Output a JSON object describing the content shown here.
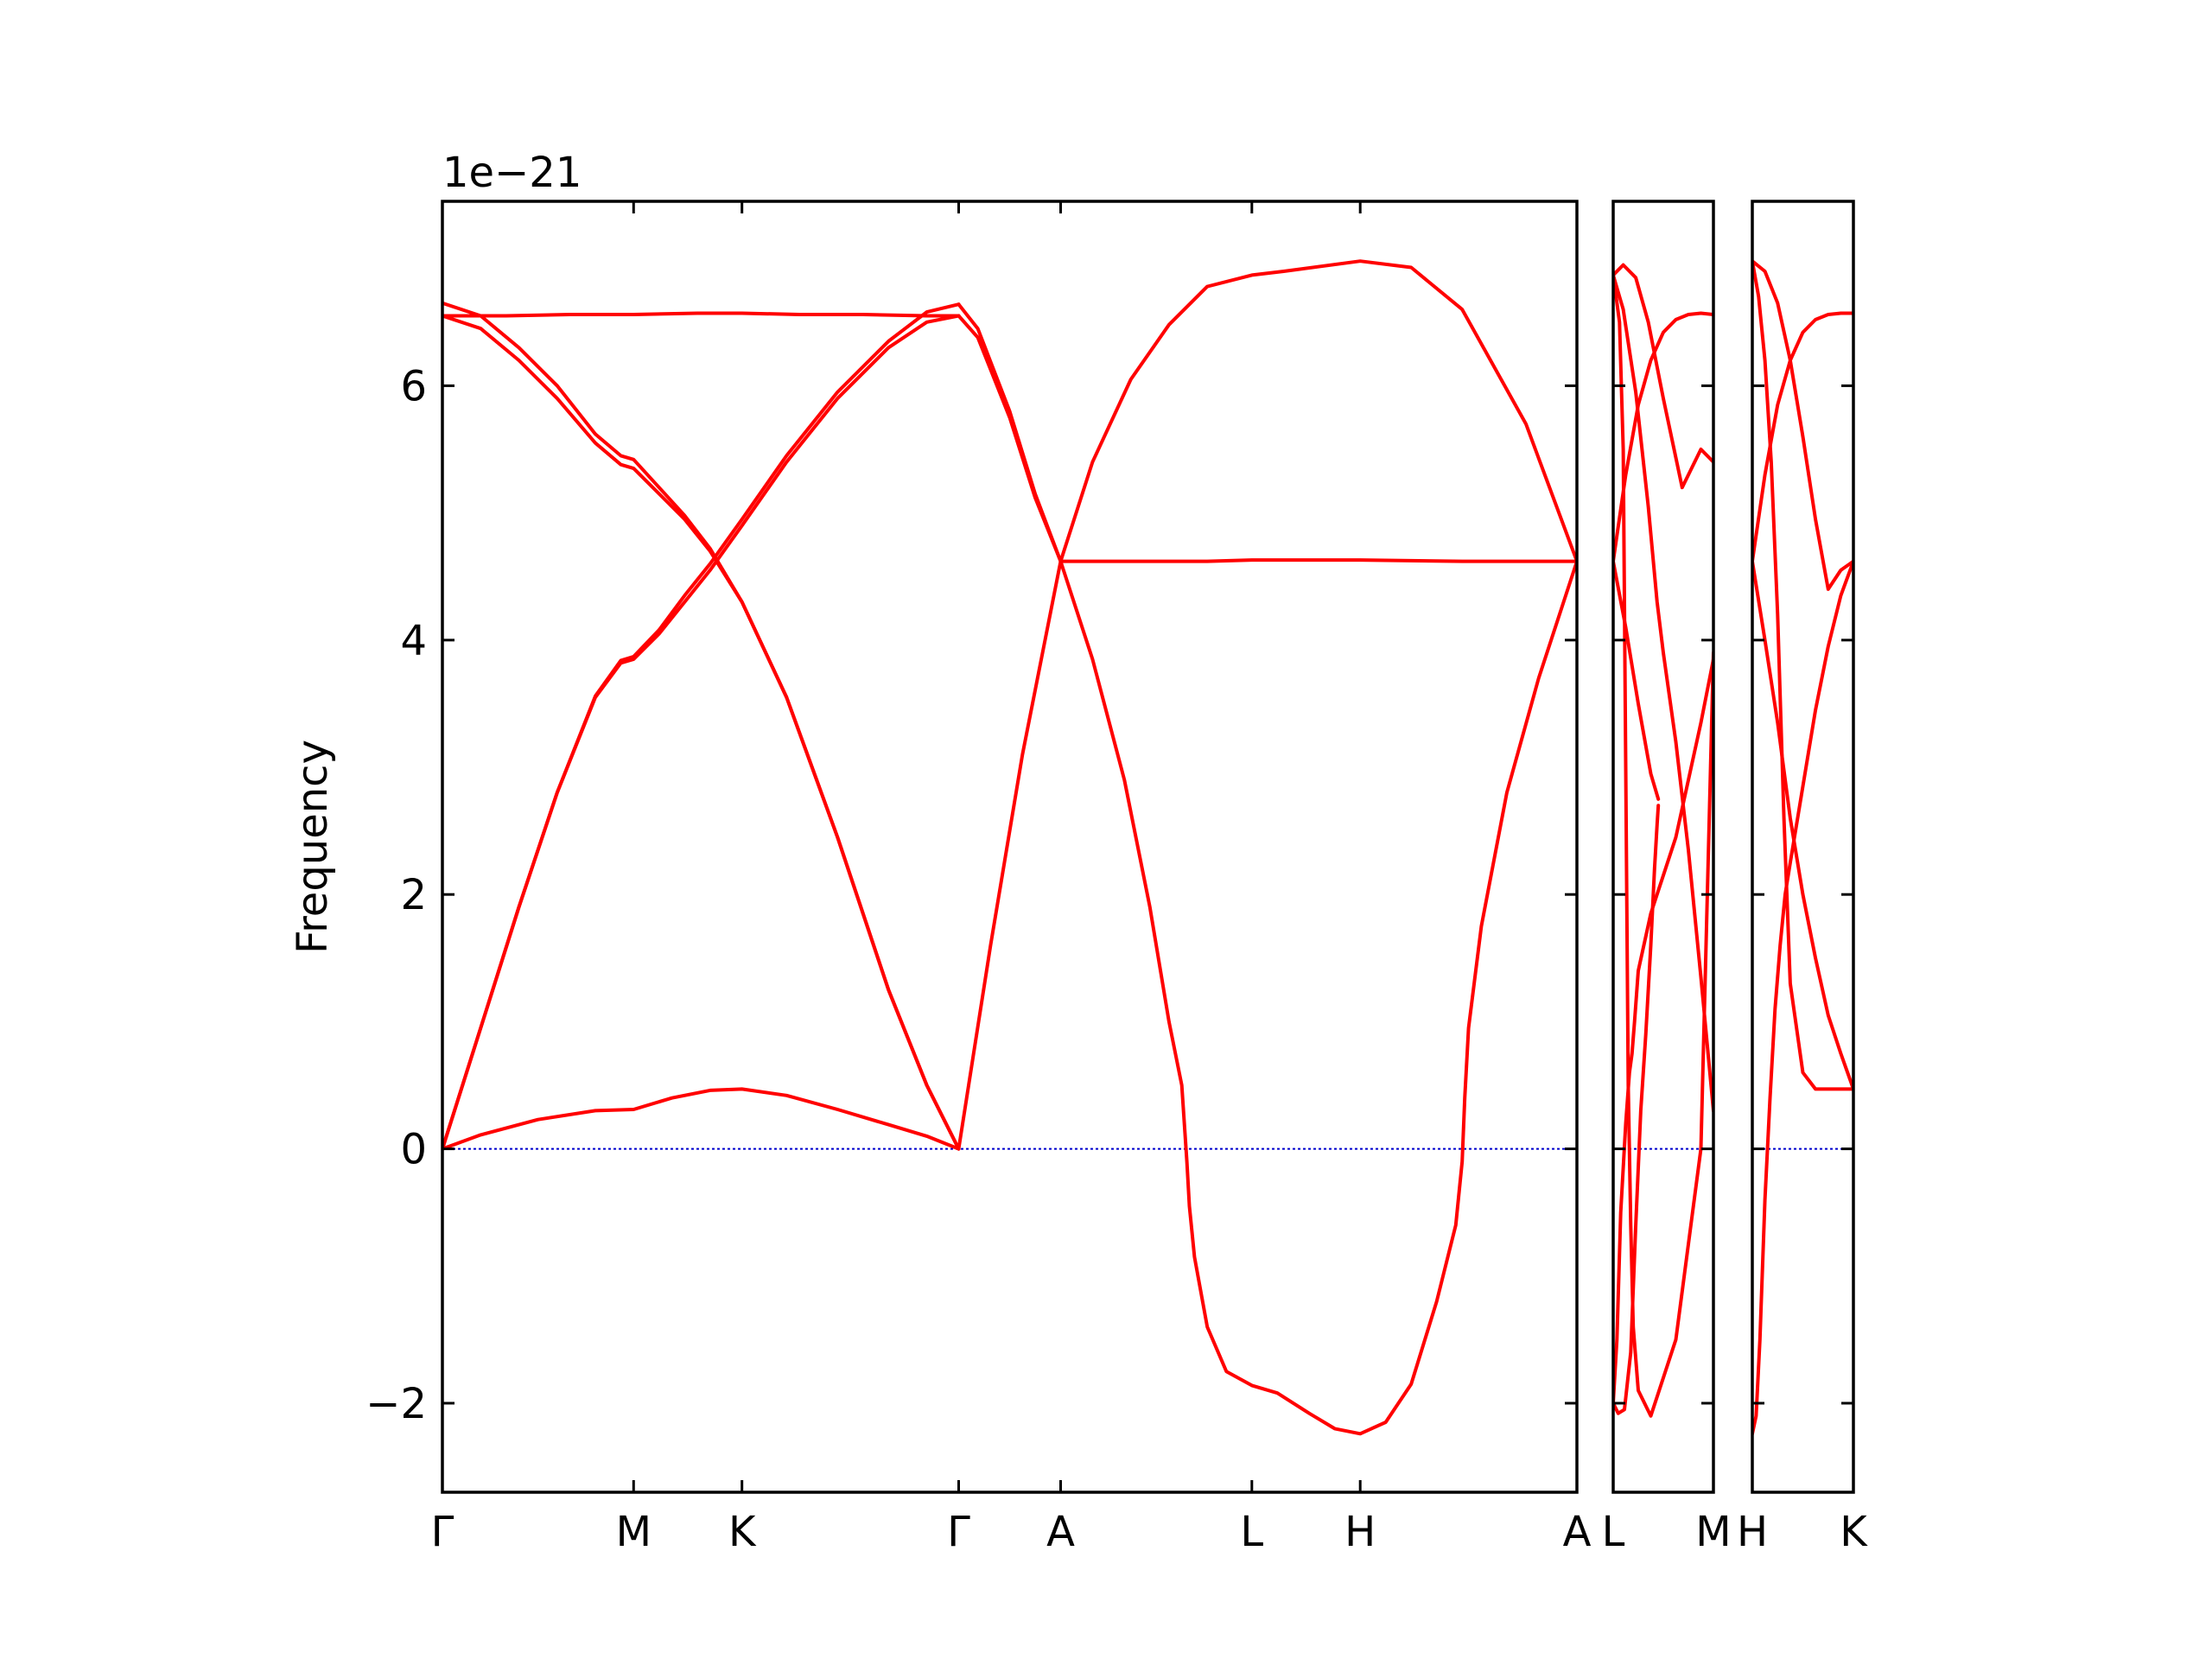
{
  "chart_data": {
    "type": "line",
    "title": "",
    "xlabel": "",
    "ylabel": "Frequency",
    "offset_text": "1e−21",
    "ylim": [
      -2.7,
      7.45
    ],
    "yticks": [
      -2,
      0,
      2,
      4,
      6
    ],
    "ytick_labels": [
      "−2",
      "0",
      "2",
      "4",
      "6"
    ],
    "line_color": "#ff0000",
    "zero_line_color": "#0000cc",
    "grid": false,
    "panels": [
      {
        "xlim": [
          0,
          8.9
        ],
        "xticks": [
          {
            "x": 0.0,
            "label": "Γ"
          },
          {
            "x": 1.5,
            "label": "M"
          },
          {
            "x": 2.35,
            "label": "K"
          },
          {
            "x": 4.05,
            "label": "Γ"
          },
          {
            "x": 4.85,
            "label": "A"
          },
          {
            "x": 6.35,
            "label": "L"
          },
          {
            "x": 7.2,
            "label": "H"
          },
          {
            "x": 8.9,
            "label": "A"
          }
        ],
        "series": [
          {
            "x": [
              0,
              0.3,
              0.75,
              1.2,
              1.5,
              1.8,
              2.1,
              2.35,
              2.7,
              3.1,
              3.5,
              3.8,
              4.05
            ],
            "y": [
              0,
              0.11,
              0.23,
              0.3,
              0.31,
              0.4,
              0.46,
              0.47,
              0.42,
              0.31,
              0.19,
              0.1,
              0
            ]
          },
          {
            "x": [
              0,
              0.3,
              0.6,
              0.9,
              1.2,
              1.4,
              1.5,
              1.7,
              1.9,
              2.1,
              2.35,
              2.7,
              3.1,
              3.5,
              3.8,
              4.05
            ],
            "y": [
              0,
              0.95,
              1.9,
              2.8,
              3.55,
              3.82,
              3.85,
              4.05,
              4.3,
              4.55,
              4.9,
              5.4,
              5.9,
              6.3,
              6.5,
              6.55
            ]
          },
          {
            "x": [
              0,
              0.3,
              0.6,
              0.9,
              1.2,
              1.4,
              1.5,
              1.7,
              1.9,
              2.1,
              2.35,
              2.7,
              3.1,
              3.5,
              3.8,
              4.05
            ],
            "y": [
              0,
              0.95,
              1.9,
              2.8,
              3.56,
              3.84,
              3.87,
              4.08,
              4.35,
              4.6,
              4.95,
              5.45,
              5.95,
              6.35,
              6.58,
              6.64
            ]
          },
          {
            "x": [
              0,
              0.3,
              0.6,
              0.9,
              1.2,
              1.4,
              1.5,
              1.7,
              1.9,
              2.1,
              2.35,
              2.7,
              3.1,
              3.5,
              3.8,
              4.05
            ],
            "y": [
              6.55,
              6.45,
              6.2,
              5.9,
              5.55,
              5.38,
              5.35,
              5.15,
              4.95,
              4.7,
              4.3,
              3.55,
              2.45,
              1.25,
              0.5,
              0
            ]
          },
          {
            "x": [
              0,
              0.3,
              0.6,
              0.9,
              1.2,
              1.4,
              1.5,
              1.7,
              1.9,
              2.1,
              2.35,
              2.7,
              3.1,
              3.5,
              3.8,
              4.05
            ],
            "y": [
              6.65,
              6.55,
              6.3,
              6.0,
              5.62,
              5.45,
              5.42,
              5.2,
              4.98,
              4.72,
              4.3,
              3.55,
              2.45,
              1.25,
              0.5,
              0
            ]
          },
          {
            "x": [
              0,
              0.5,
              1.0,
              1.5,
              2.0,
              2.35,
              2.8,
              3.3,
              3.8,
              4.05
            ],
            "y": [
              6.55,
              6.55,
              6.56,
              6.56,
              6.57,
              6.57,
              6.56,
              6.56,
              6.55,
              6.55
            ]
          },
          {
            "x": [
              4.05,
              4.2,
              4.45,
              4.65,
              4.85
            ],
            "y": [
              6.64,
              6.45,
              5.8,
              5.15,
              4.62
            ]
          },
          {
            "x": [
              4.05,
              4.2,
              4.45,
              4.65,
              4.85
            ],
            "y": [
              6.55,
              6.38,
              5.75,
              5.12,
              4.62
            ]
          },
          {
            "x": [
              4.05,
              4.3,
              4.55,
              4.85
            ],
            "y": [
              0,
              1.6,
              3.1,
              4.62
            ]
          },
          {
            "x": [
              4.85,
              5.1,
              5.4,
              5.7,
              6.0,
              6.35,
              6.6,
              7.2,
              7.6,
              8.0,
              8.5,
              8.9
            ],
            "y": [
              4.62,
              5.4,
              6.05,
              6.48,
              6.78,
              6.87,
              6.9,
              6.98,
              6.93,
              6.6,
              5.7,
              4.62
            ]
          },
          {
            "x": [
              4.85,
              5.5,
              6.0,
              6.35,
              7.2,
              8.0,
              8.9
            ],
            "y": [
              4.62,
              4.62,
              4.62,
              4.63,
              4.63,
              4.62,
              4.62
            ]
          },
          {
            "x": [
              4.85,
              5.1,
              5.35,
              5.55,
              5.7,
              5.8,
              5.84,
              5.86,
              5.9,
              6.0,
              6.15,
              6.35,
              6.55,
              6.8,
              7.0,
              7.2,
              7.4,
              7.6,
              7.8,
              7.95,
              8.0,
              8.02,
              8.05,
              8.15,
              8.35,
              8.6,
              8.9
            ],
            "y": [
              4.62,
              3.85,
              2.9,
              1.9,
              1.0,
              0.5,
              -0.1,
              -0.45,
              -0.85,
              -1.4,
              -1.75,
              -1.86,
              -1.92,
              -2.08,
              -2.2,
              -2.24,
              -2.15,
              -1.85,
              -1.2,
              -0.6,
              -0.1,
              0.4,
              0.95,
              1.75,
              2.8,
              3.7,
              4.62
            ]
          }
        ]
      },
      {
        "xlim": [
          0,
          0.8
        ],
        "xticks": [
          {
            "x": 0.0,
            "label": "L"
          },
          {
            "x": 0.8,
            "label": "M"
          }
        ],
        "series": [
          {
            "x": [
              0,
              0.08,
              0.18,
              0.28,
              0.4,
              0.55,
              0.7,
              0.8
            ],
            "y": [
              6.87,
              6.95,
              6.85,
              6.5,
              5.9,
              5.2,
              5.5,
              5.4
            ]
          },
          {
            "x": [
              0,
              0.08,
              0.18,
              0.28,
              0.35,
              0.4,
              0.5,
              0.6,
              0.7,
              0.8
            ],
            "y": [
              6.87,
              6.6,
              5.95,
              5.05,
              4.3,
              3.9,
              3.2,
              2.35,
              1.35,
              0.3
            ]
          },
          {
            "x": [
              0,
              0.1,
              0.2,
              0.3,
              0.4,
              0.5,
              0.6,
              0.7,
              0.8
            ],
            "y": [
              4.62,
              5.3,
              5.85,
              6.2,
              6.42,
              6.52,
              6.56,
              6.57,
              6.56
            ]
          },
          {
            "x": [
              0,
              0.1,
              0.2,
              0.3,
              0.36
            ],
            "y": [
              4.62,
              4.1,
              3.5,
              2.95,
              2.75
            ]
          },
          {
            "x": [
              0,
              0.04,
              0.09,
              0.14,
              0.18,
              0.22,
              0.26,
              0.3,
              0.33,
              0.35,
              0.36
            ],
            "y": [
              -2.0,
              -2.08,
              -2.05,
              -1.6,
              -0.6,
              0.3,
              0.9,
              1.6,
              2.2,
              2.55,
              2.7
            ]
          },
          {
            "x": [
              0,
              0.03,
              0.06,
              0.1,
              0.13,
              0.15,
              0.17,
              0.2,
              0.3,
              0.5,
              0.7,
              0.8
            ],
            "y": [
              -2.0,
              -1.5,
              -0.5,
              0.2,
              0.6,
              0.75,
              1.0,
              1.4,
              1.85,
              2.45,
              3.35,
              3.85
            ]
          },
          {
            "x": [
              0,
              0.05,
              0.08,
              0.1,
              0.12,
              0.14,
              0.16,
              0.2,
              0.3,
              0.5,
              0.7,
              0.8
            ],
            "y": [
              6.87,
              6.5,
              5.5,
              3.0,
              0.5,
              -0.6,
              -1.4,
              -1.9,
              -2.1,
              -1.5,
              0.0,
              3.9
            ]
          }
        ]
      },
      {
        "xlim": [
          0,
          0.8
        ],
        "xticks": [
          {
            "x": 0.0,
            "label": "H"
          },
          {
            "x": 0.8,
            "label": "K"
          }
        ],
        "series": [
          {
            "x": [
              0,
              0.1,
              0.2,
              0.3,
              0.4,
              0.5,
              0.6,
              0.7,
              0.8
            ],
            "y": [
              6.98,
              6.9,
              6.65,
              6.2,
              5.6,
              4.95,
              4.4,
              4.55,
              4.62
            ]
          },
          {
            "x": [
              0,
              0.1,
              0.2,
              0.3,
              0.4,
              0.5,
              0.6,
              0.7,
              0.8
            ],
            "y": [
              4.62,
              5.3,
              5.85,
              6.2,
              6.42,
              6.52,
              6.56,
              6.57,
              6.57
            ]
          },
          {
            "x": [
              0,
              0.1,
              0.2,
              0.3,
              0.4,
              0.5,
              0.6,
              0.7,
              0.8
            ],
            "y": [
              4.62,
              4.0,
              3.35,
              2.6,
              2.0,
              1.5,
              1.05,
              0.75,
              0.47
            ]
          },
          {
            "x": [
              0,
              0.03,
              0.06,
              0.1,
              0.14,
              0.18,
              0.22,
              0.26,
              0.3,
              0.4,
              0.5,
              0.6,
              0.7,
              0.8
            ],
            "y": [
              -2.24,
              -2.1,
              -1.5,
              -0.4,
              0.4,
              1.1,
              1.6,
              2.0,
              2.25,
              2.85,
              3.45,
              3.95,
              4.35,
              4.62
            ]
          },
          {
            "x": [
              0,
              0.05,
              0.1,
              0.15,
              0.2,
              0.25,
              0.3,
              0.4,
              0.5,
              0.6,
              0.7,
              0.8
            ],
            "y": [
              6.98,
              6.7,
              6.2,
              5.4,
              4.2,
              2.6,
              1.3,
              0.6,
              0.47,
              0.47,
              0.47,
              0.47
            ]
          }
        ]
      }
    ]
  }
}
